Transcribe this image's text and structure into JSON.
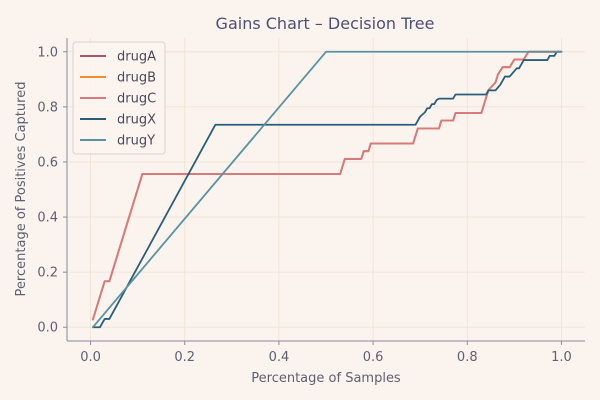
{
  "chart_data": {
    "type": "line",
    "title": "Gains Chart – Decision Tree",
    "xlabel": "Percentage of Samples",
    "ylabel": "Percentage of Positives Captured",
    "xlim": [
      -0.05,
      1.05
    ],
    "ylim": [
      -0.05,
      1.05
    ],
    "xticks": [
      0.0,
      0.2,
      0.4,
      0.6,
      0.8,
      1.0
    ],
    "yticks": [
      0.0,
      0.2,
      0.4,
      0.6,
      0.8,
      1.0
    ],
    "tick_labels_x": [
      "0.0",
      "0.2",
      "0.4",
      "0.6",
      "0.8",
      "1.0"
    ],
    "tick_labels_y": [
      "0.0",
      "0.2",
      "0.4",
      "0.6",
      "0.8",
      "1.0"
    ],
    "grid": true,
    "legend_position": "top-left",
    "series": [
      {
        "name": "drugA",
        "color": "#b0526a",
        "points": [
          [
            0.005,
            0.028
          ],
          [
            0.03,
            0.167
          ],
          [
            0.04,
            0.167
          ],
          [
            0.11,
            0.556
          ],
          [
            0.53,
            0.556
          ],
          [
            0.54,
            0.611
          ],
          [
            0.575,
            0.611
          ],
          [
            0.58,
            0.639
          ],
          [
            0.59,
            0.639
          ],
          [
            0.595,
            0.667
          ],
          [
            0.685,
            0.667
          ],
          [
            0.695,
            0.722
          ],
          [
            0.74,
            0.722
          ],
          [
            0.745,
            0.75
          ],
          [
            0.77,
            0.75
          ],
          [
            0.775,
            0.778
          ],
          [
            0.83,
            0.778
          ],
          [
            0.845,
            0.861
          ],
          [
            0.86,
            0.889
          ],
          [
            0.865,
            0.917
          ],
          [
            0.875,
            0.944
          ],
          [
            0.89,
            0.944
          ],
          [
            0.9,
            0.972
          ],
          [
            0.92,
            0.972
          ],
          [
            0.93,
            1.0
          ],
          [
            1.0,
            1.0
          ]
        ]
      },
      {
        "name": "drugB",
        "color": "#f28e2b",
        "points": [
          [
            0.005,
            0.028
          ],
          [
            0.03,
            0.167
          ],
          [
            0.04,
            0.167
          ],
          [
            0.11,
            0.556
          ],
          [
            0.53,
            0.556
          ],
          [
            0.54,
            0.611
          ],
          [
            0.575,
            0.611
          ],
          [
            0.58,
            0.639
          ],
          [
            0.59,
            0.639
          ],
          [
            0.595,
            0.667
          ],
          [
            0.685,
            0.667
          ],
          [
            0.695,
            0.722
          ],
          [
            0.74,
            0.722
          ],
          [
            0.745,
            0.75
          ],
          [
            0.77,
            0.75
          ],
          [
            0.775,
            0.778
          ],
          [
            0.83,
            0.778
          ],
          [
            0.845,
            0.861
          ],
          [
            0.86,
            0.889
          ],
          [
            0.865,
            0.917
          ],
          [
            0.875,
            0.944
          ],
          [
            0.89,
            0.944
          ],
          [
            0.9,
            0.972
          ],
          [
            0.92,
            0.972
          ],
          [
            0.93,
            1.0
          ],
          [
            1.0,
            1.0
          ]
        ]
      },
      {
        "name": "drugC",
        "color": "#d77a80",
        "points": [
          [
            0.005,
            0.028
          ],
          [
            0.03,
            0.167
          ],
          [
            0.04,
            0.167
          ],
          [
            0.11,
            0.556
          ],
          [
            0.53,
            0.556
          ],
          [
            0.54,
            0.611
          ],
          [
            0.575,
            0.611
          ],
          [
            0.58,
            0.639
          ],
          [
            0.59,
            0.639
          ],
          [
            0.595,
            0.667
          ],
          [
            0.685,
            0.667
          ],
          [
            0.695,
            0.722
          ],
          [
            0.74,
            0.722
          ],
          [
            0.745,
            0.75
          ],
          [
            0.77,
            0.75
          ],
          [
            0.775,
            0.778
          ],
          [
            0.83,
            0.778
          ],
          [
            0.845,
            0.861
          ],
          [
            0.86,
            0.889
          ],
          [
            0.865,
            0.917
          ],
          [
            0.875,
            0.944
          ],
          [
            0.89,
            0.944
          ],
          [
            0.9,
            0.972
          ],
          [
            0.92,
            0.972
          ],
          [
            0.93,
            1.0
          ],
          [
            1.0,
            1.0
          ]
        ]
      },
      {
        "name": "drugX",
        "color": "#2a5d7a",
        "points": [
          [
            0.005,
            0.0
          ],
          [
            0.02,
            0.0
          ],
          [
            0.03,
            0.03
          ],
          [
            0.04,
            0.03
          ],
          [
            0.265,
            0.735
          ],
          [
            0.69,
            0.735
          ],
          [
            0.7,
            0.765
          ],
          [
            0.71,
            0.78
          ],
          [
            0.715,
            0.795
          ],
          [
            0.72,
            0.795
          ],
          [
            0.725,
            0.81
          ],
          [
            0.73,
            0.81
          ],
          [
            0.735,
            0.825
          ],
          [
            0.74,
            0.83
          ],
          [
            0.77,
            0.83
          ],
          [
            0.775,
            0.845
          ],
          [
            0.84,
            0.845
          ],
          [
            0.845,
            0.86
          ],
          [
            0.86,
            0.86
          ],
          [
            0.87,
            0.88
          ],
          [
            0.875,
            0.895
          ],
          [
            0.88,
            0.91
          ],
          [
            0.89,
            0.91
          ],
          [
            0.9,
            0.93
          ],
          [
            0.905,
            0.94
          ],
          [
            0.91,
            0.94
          ],
          [
            0.92,
            0.97
          ],
          [
            0.97,
            0.97
          ],
          [
            0.975,
            0.985
          ],
          [
            0.985,
            0.985
          ],
          [
            0.99,
            1.0
          ],
          [
            1.0,
            1.0
          ]
        ]
      },
      {
        "name": "drugY",
        "color": "#5a93a0",
        "points": [
          [
            0.005,
            0.0
          ],
          [
            0.5,
            1.0
          ],
          [
            1.0,
            1.0
          ]
        ]
      }
    ]
  }
}
